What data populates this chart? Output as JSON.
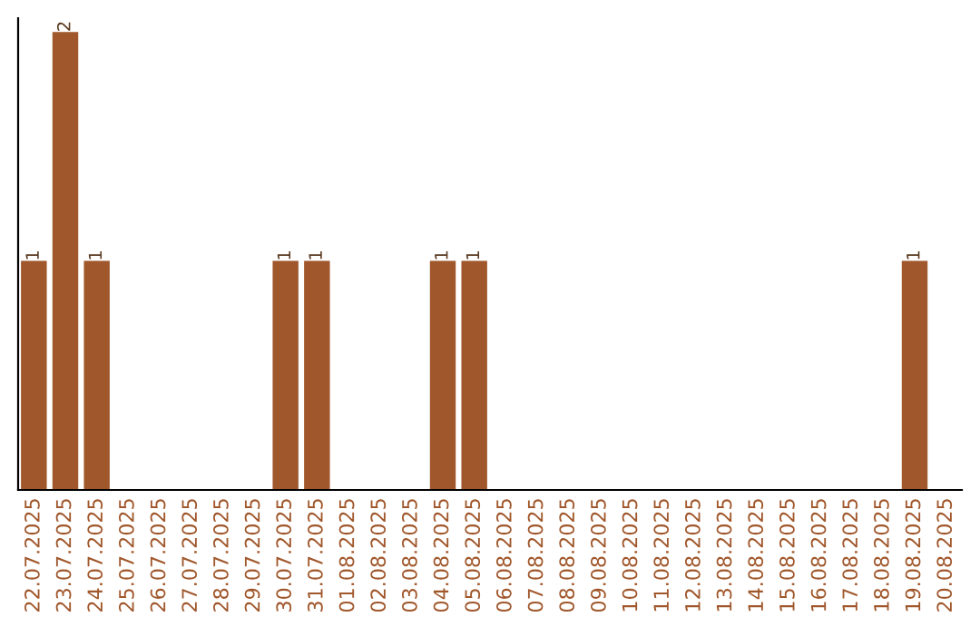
{
  "chart_data": {
    "type": "bar",
    "categories": [
      "22.07.2025",
      "23.07.2025",
      "24.07.2025",
      "25.07.2025",
      "26.07.2025",
      "27.07.2025",
      "28.07.2025",
      "29.07.2025",
      "30.07.2025",
      "31.07.2025",
      "01.08.2025",
      "02.08.2025",
      "03.08.2025",
      "04.08.2025",
      "05.08.2025",
      "06.08.2025",
      "07.08.2025",
      "08.08.2025",
      "09.08.2025",
      "10.08.2025",
      "11.08.2025",
      "12.08.2025",
      "13.08.2025",
      "14.08.2025",
      "15.08.2025",
      "16.08.2025",
      "17.08.2025",
      "18.08.2025",
      "19.08.2025",
      "20.08.2025"
    ],
    "values": [
      1,
      2,
      1,
      0,
      0,
      0,
      0,
      0,
      1,
      1,
      0,
      0,
      0,
      1,
      1,
      0,
      0,
      0,
      0,
      0,
      0,
      0,
      0,
      0,
      0,
      0,
      0,
      0,
      1,
      0
    ],
    "value_labels": [
      "1",
      "2",
      "1",
      null,
      null,
      null,
      null,
      null,
      "1",
      "1",
      null,
      null,
      null,
      "1",
      "1",
      null,
      null,
      null,
      null,
      null,
      null,
      null,
      null,
      null,
      null,
      null,
      null,
      null,
      "1",
      null
    ],
    "color": "#a0572b",
    "grid": false,
    "legend": false
  }
}
